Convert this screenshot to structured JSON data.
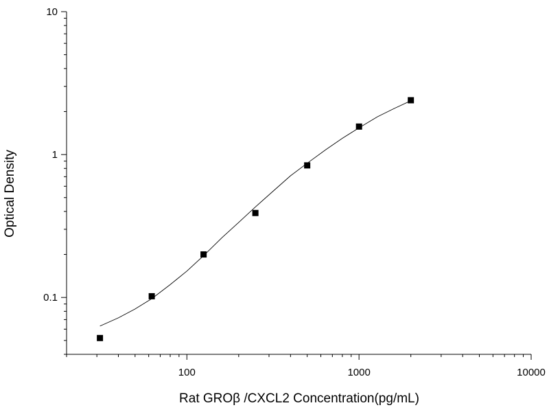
{
  "chart_data": {
    "type": "scatter",
    "title": "",
    "xlabel": "Rat GROβ /CXCL2 Concentration(pg/mL)",
    "ylabel": "Optical Density",
    "x_scale": "log",
    "y_scale": "log",
    "xlim": [
      20,
      10000
    ],
    "ylim": [
      0.04,
      10
    ],
    "x_ticks": [
      100,
      1000,
      10000
    ],
    "x_tick_labels": [
      "100",
      "1000",
      "10000"
    ],
    "y_ticks": [
      0.1,
      1,
      10
    ],
    "y_tick_labels": [
      "0.1",
      "1",
      "10"
    ],
    "grid": false,
    "legend": "none",
    "series": [
      {
        "x": [
          31.25,
          62.5,
          125,
          250,
          500,
          1000,
          2000
        ],
        "y": [
          0.052,
          0.102,
          0.2,
          0.39,
          0.84,
          1.57,
          2.4
        ],
        "marker": "square",
        "color": "#000000"
      }
    ],
    "fit_curve": {
      "x": [
        31.25,
        40,
        50,
        62.5,
        80,
        100,
        125,
        160,
        200,
        250,
        320,
        400,
        500,
        640,
        800,
        1000,
        1280,
        1600,
        2000
      ],
      "y": [
        0.063,
        0.072,
        0.083,
        0.098,
        0.123,
        0.153,
        0.196,
        0.262,
        0.335,
        0.43,
        0.56,
        0.71,
        0.87,
        1.08,
        1.3,
        1.54,
        1.84,
        2.1,
        2.38
      ],
      "color": "#000000"
    }
  }
}
